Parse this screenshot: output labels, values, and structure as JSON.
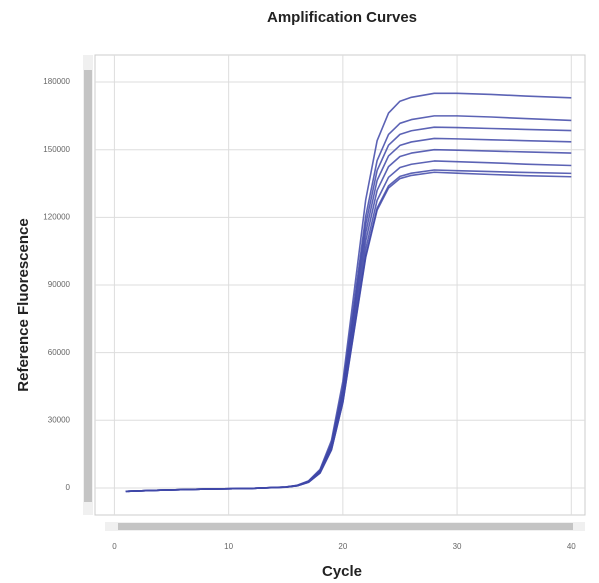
{
  "chart_data": {
    "type": "line",
    "title": "Amplification Curves",
    "x_label": "Cycle",
    "y_label": "Reference Fluorescence",
    "x": [
      1,
      4,
      8,
      12,
      15,
      16,
      17,
      18,
      19,
      20,
      21,
      22,
      23,
      24,
      25,
      26,
      28,
      30,
      33,
      36,
      40
    ],
    "series": [
      {
        "color": "#3f48a8",
        "values": [
          -1500,
          -1000,
          -500,
          -200,
          438,
          1173,
          3150,
          8225,
          21000,
          47250,
          87500,
          127750,
          154000,
          166250,
          171500,
          173250,
          175000,
          175000,
          174500,
          173800,
          173000
        ]
      },
      {
        "color": "#3f48a8",
        "values": [
          -1500,
          -1000,
          -500,
          -200,
          413,
          1106,
          2970,
          7755,
          19800,
          44550,
          82500,
          120450,
          145200,
          156750,
          161700,
          163350,
          165000,
          165000,
          164500,
          163800,
          163000
        ]
      },
      {
        "color": "#3f48a8",
        "values": [
          -1500,
          -1000,
          -500,
          -200,
          400,
          1072,
          2880,
          7520,
          19200,
          43200,
          80000,
          116800,
          140800,
          152000,
          156800,
          158400,
          160000,
          159800,
          159400,
          159000,
          158500
        ]
      },
      {
        "color": "#3f48a8",
        "values": [
          -1500,
          -1000,
          -500,
          -200,
          388,
          1039,
          2790,
          7285,
          18600,
          41850,
          77500,
          113150,
          136400,
          147250,
          151900,
          153450,
          155000,
          154800,
          154400,
          154000,
          153500
        ]
      },
      {
        "color": "#3f48a8",
        "values": [
          -1500,
          -1000,
          -500,
          -200,
          375,
          1005,
          2700,
          7050,
          18000,
          40500,
          75000,
          109500,
          132000,
          142500,
          147000,
          148500,
          150000,
          149800,
          149400,
          149000,
          148500
        ]
      },
      {
        "color": "#3f48a8",
        "values": [
          -1500,
          -1000,
          -500,
          -200,
          363,
          972,
          2610,
          6815,
          17400,
          39150,
          72500,
          105850,
          127600,
          137750,
          142100,
          143550,
          145000,
          144700,
          144200,
          143600,
          143000
        ]
      },
      {
        "color": "#3f48a8",
        "values": [
          -1500,
          -1000,
          -500,
          -200,
          353,
          945,
          2538,
          6627,
          16920,
          38070,
          70500,
          102930,
          124080,
          133950,
          138180,
          139590,
          141000,
          140700,
          140300,
          139900,
          139500
        ]
      },
      {
        "color": "#3f48a8",
        "values": [
          -1500,
          -1000,
          -500,
          -200,
          350,
          938,
          2520,
          6580,
          16800,
          37800,
          70000,
          102200,
          123200,
          133000,
          137200,
          138600,
          140000,
          139600,
          139000,
          138500,
          138000
        ]
      }
    ],
    "xlim": [
      -1.7,
      41.2
    ],
    "xticks": [
      0,
      10,
      20,
      30,
      40
    ],
    "ylim": [
      -12000,
      192000
    ],
    "yticks": [
      0,
      30000,
      60000,
      90000,
      120000,
      150000,
      180000
    ],
    "grid": true
  }
}
